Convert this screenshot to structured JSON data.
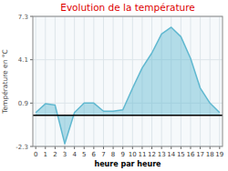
{
  "chart_data": {
    "type": "area",
    "title": "Evolution de la température",
    "x_label": "heure par heure",
    "y_label": "Température en °C",
    "x": [
      0,
      1,
      2,
      3,
      4,
      5,
      6,
      7,
      8,
      9,
      10,
      11,
      12,
      13,
      14,
      15,
      16,
      17,
      18,
      19
    ],
    "values": [
      0.2,
      0.85,
      0.75,
      -2.1,
      0.2,
      0.9,
      0.9,
      0.3,
      0.3,
      0.4,
      2.0,
      3.5,
      4.6,
      6.0,
      6.5,
      5.8,
      4.2,
      2.0,
      0.9,
      0.2
    ],
    "color": "#60b8d0",
    "xlim": [
      -0.3,
      19.3
    ],
    "xticks": [
      0,
      1,
      2,
      3,
      4,
      5,
      6,
      7,
      8,
      9,
      10,
      11,
      12,
      13,
      14,
      15,
      16,
      17,
      18,
      19
    ],
    "ylim": [
      -2.3,
      7.3
    ],
    "yticks": [
      -2.3,
      0.9,
      4.1,
      7.3
    ],
    "grid": true
  }
}
